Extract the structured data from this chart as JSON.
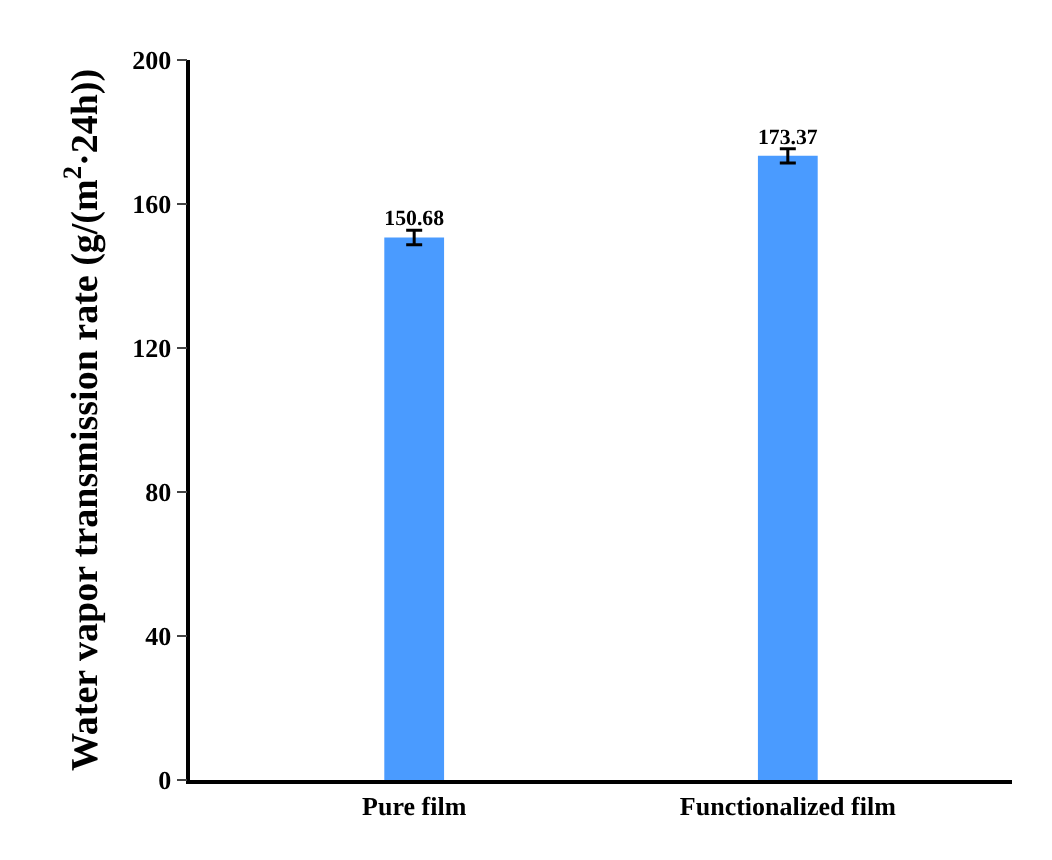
{
  "chart_data": {
    "type": "bar",
    "categories": [
      "Pure film",
      "Functionalized film"
    ],
    "values": [
      150.68,
      173.37
    ],
    "errors": [
      2,
      2
    ],
    "color": "#4a9bff",
    "ylabel": "Water vapor transmission rate (g/(m$^{2}$·24h))",
    "ylim": [
      0,
      200
    ],
    "yticks": [
      0,
      40,
      80,
      120,
      160,
      200
    ],
    "data_labels": true,
    "grid": false,
    "legend": false
  }
}
